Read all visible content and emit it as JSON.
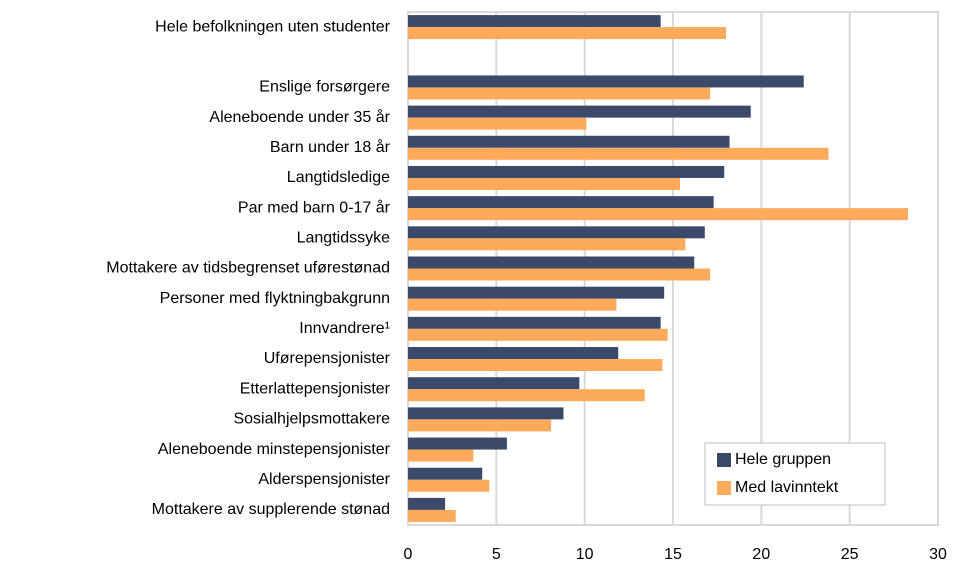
{
  "chart_data": {
    "type": "hbar",
    "categories": [
      "Hele befolkningen uten studenter",
      null,
      "Enslige forsørgere",
      "Aleneboende under 35 år",
      "Barn under 18 år",
      "Langtidsledige",
      "Par med barn 0-17 år",
      "Langtidssyke",
      "Mottakere av tidsbegrenset uførestønad",
      "Personer med flyktningbakgrunn",
      "Innvandrere¹",
      "Uførepensjonister",
      "Etterlattepensjonister",
      "Sosialhjelpsmottakere",
      "Aleneboende minstepensjonister",
      "Alderspensjonister",
      "Mottakere av supplerende stønad"
    ],
    "series": [
      {
        "name": "Hele gruppen",
        "color": "#3b4a6b",
        "values": [
          14.3,
          null,
          22.4,
          19.4,
          18.2,
          17.9,
          17.3,
          16.8,
          16.2,
          14.5,
          14.3,
          11.9,
          9.7,
          8.8,
          5.6,
          4.2,
          2.1
        ]
      },
      {
        "name": "Med lavinntekt",
        "color": "#fdab5a",
        "values": [
          18.0,
          null,
          17.1,
          10.1,
          23.8,
          15.4,
          28.3,
          15.7,
          17.1,
          11.8,
          14.7,
          14.4,
          13.4,
          8.1,
          3.7,
          4.6,
          2.7
        ]
      }
    ],
    "xlim": [
      0,
      30
    ],
    "xticks": [
      0,
      5,
      10,
      15,
      20,
      25,
      30
    ],
    "grid": true,
    "legend": "lower right"
  }
}
